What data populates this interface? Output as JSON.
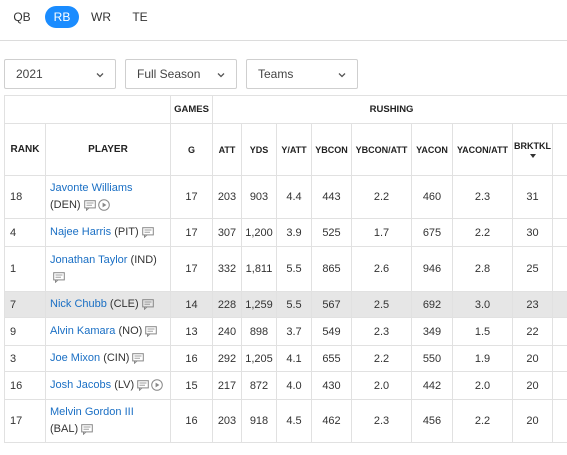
{
  "position_tabs": [
    {
      "label": "QB",
      "active": false
    },
    {
      "label": "RB",
      "active": true
    },
    {
      "label": "WR",
      "active": false
    },
    {
      "label": "TE",
      "active": false
    }
  ],
  "filters": {
    "season": "2021",
    "period": "Full Season",
    "view": "Teams"
  },
  "table": {
    "group_headers": {
      "games": "GAMES",
      "rushing": "RUSHING"
    },
    "column_headers": [
      "RANK",
      "PLAYER",
      "G",
      "ATT",
      "YDS",
      "Y/ATT",
      "YBCON",
      "YBCON/ATT",
      "YACON",
      "YACON/ATT",
      "BRKTKL"
    ],
    "sorted_column": "BRKTKL",
    "rows": [
      {
        "rank": "18",
        "player": "Javonte Williams",
        "team": "(DEN)",
        "wrap": true,
        "video": true,
        "highlight": false,
        "g": "17",
        "att": "203",
        "yds": "903",
        "y_att": "4.4",
        "ybcon": "443",
        "ybcon_att": "2.2",
        "yacon": "460",
        "yacon_att": "2.3",
        "brktkl": "31"
      },
      {
        "rank": "4",
        "player": "Najee Harris",
        "team": "(PIT)",
        "wrap": false,
        "video": false,
        "highlight": false,
        "g": "17",
        "att": "307",
        "yds": "1,200",
        "y_att": "3.9",
        "ybcon": "525",
        "ybcon_att": "1.7",
        "yacon": "675",
        "yacon_att": "2.2",
        "brktkl": "30"
      },
      {
        "rank": "1",
        "player": "Jonathan Taylor",
        "team": "(IND)",
        "wrap": false,
        "icon_newline": true,
        "video": false,
        "highlight": false,
        "g": "17",
        "att": "332",
        "yds": "1,811",
        "y_att": "5.5",
        "ybcon": "865",
        "ybcon_att": "2.6",
        "yacon": "946",
        "yacon_att": "2.8",
        "brktkl": "25"
      },
      {
        "rank": "7",
        "player": "Nick Chubb",
        "team": "(CLE)",
        "wrap": false,
        "video": false,
        "highlight": true,
        "g": "14",
        "att": "228",
        "yds": "1,259",
        "y_att": "5.5",
        "ybcon": "567",
        "ybcon_att": "2.5",
        "yacon": "692",
        "yacon_att": "3.0",
        "brktkl": "23"
      },
      {
        "rank": "9",
        "player": "Alvin Kamara",
        "team": "(NO)",
        "wrap": false,
        "video": false,
        "highlight": false,
        "g": "13",
        "att": "240",
        "yds": "898",
        "y_att": "3.7",
        "ybcon": "549",
        "ybcon_att": "2.3",
        "yacon": "349",
        "yacon_att": "1.5",
        "brktkl": "22"
      },
      {
        "rank": "3",
        "player": "Joe Mixon",
        "team": "(CIN)",
        "wrap": false,
        "video": false,
        "highlight": false,
        "g": "16",
        "att": "292",
        "yds": "1,205",
        "y_att": "4.1",
        "ybcon": "655",
        "ybcon_att": "2.2",
        "yacon": "550",
        "yacon_att": "1.9",
        "brktkl": "20"
      },
      {
        "rank": "16",
        "player": "Josh Jacobs",
        "team": "(LV)",
        "wrap": false,
        "video": true,
        "highlight": false,
        "g": "15",
        "att": "217",
        "yds": "872",
        "y_att": "4.0",
        "ybcon": "430",
        "ybcon_att": "2.0",
        "yacon": "442",
        "yacon_att": "2.0",
        "brktkl": "20"
      },
      {
        "rank": "17",
        "player": "Melvin Gordon III",
        "team": "(BAL)",
        "wrap": true,
        "video": false,
        "highlight": false,
        "g": "16",
        "att": "203",
        "yds": "918",
        "y_att": "4.5",
        "ybcon": "462",
        "ybcon_att": "2.3",
        "yacon": "456",
        "yacon_att": "2.2",
        "brktkl": "20"
      }
    ]
  },
  "icons": {
    "comment": "comment-icon",
    "video": "play-circle-icon",
    "dropdown": "chevron-down-icon",
    "sort": "sort-down-icon"
  },
  "colors": {
    "accent": "#1a8cff",
    "link": "#1a6fc4",
    "highlight_row": "#e6e6e6"
  }
}
